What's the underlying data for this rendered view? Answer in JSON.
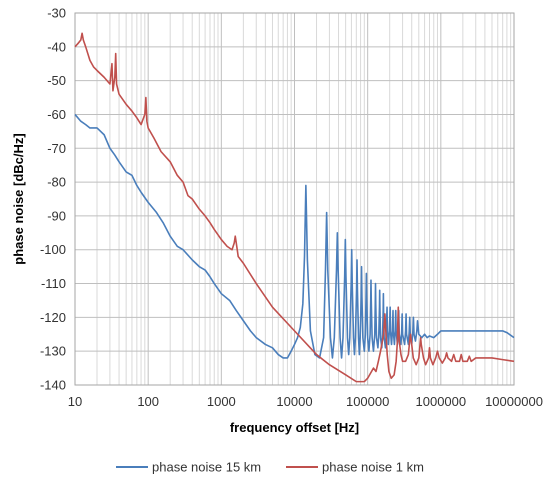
{
  "chart_data": {
    "type": "line",
    "title": "",
    "xlabel": "frequency offset [Hz]",
    "ylabel": "phase noise [dBc/Hz]",
    "x_scale": "log",
    "xlim": [
      10,
      10000000
    ],
    "ylim": [
      -140,
      -30
    ],
    "x_ticks": [
      10,
      100,
      1000,
      10000,
      100000,
      1000000,
      10000000
    ],
    "x_tick_labels": [
      "10",
      "100",
      "1000",
      "10000",
      "100000",
      "1000000",
      "10000000"
    ],
    "y_ticks": [
      -30,
      -40,
      -50,
      -60,
      -70,
      -80,
      -90,
      -100,
      -110,
      -120,
      -130,
      -140
    ],
    "y_tick_labels": [
      "-30",
      "-40",
      "-50",
      "-60",
      "-70",
      "-80",
      "-90",
      "-100",
      "-110",
      "-120",
      "-130",
      "-140"
    ],
    "grid": true,
    "legend_position": "bottom",
    "series": [
      {
        "name": "phase noise 15 km",
        "color": "#4a7ebb",
        "points": [
          [
            10,
            -60
          ],
          [
            12,
            -62
          ],
          [
            14,
            -63
          ],
          [
            16,
            -64
          ],
          [
            20,
            -64
          ],
          [
            25,
            -66
          ],
          [
            30,
            -70
          ],
          [
            35,
            -72
          ],
          [
            40,
            -74
          ],
          [
            50,
            -77
          ],
          [
            60,
            -78
          ],
          [
            70,
            -81
          ],
          [
            80,
            -83
          ],
          [
            100,
            -86
          ],
          [
            130,
            -89
          ],
          [
            160,
            -92
          ],
          [
            200,
            -96
          ],
          [
            250,
            -99
          ],
          [
            300,
            -100
          ],
          [
            400,
            -103
          ],
          [
            500,
            -105
          ],
          [
            600,
            -106
          ],
          [
            700,
            -108
          ],
          [
            800,
            -110
          ],
          [
            1000,
            -113
          ],
          [
            1300,
            -115
          ],
          [
            1600,
            -118
          ],
          [
            2000,
            -121
          ],
          [
            2500,
            -124
          ],
          [
            3000,
            -126
          ],
          [
            4000,
            -128
          ],
          [
            5000,
            -129
          ],
          [
            6000,
            -131
          ],
          [
            7000,
            -132
          ],
          [
            8000,
            -132
          ],
          [
            9000,
            -130
          ],
          [
            10000,
            -128
          ],
          [
            11000,
            -126
          ],
          [
            12000,
            -123
          ],
          [
            13000,
            -116
          ],
          [
            13700,
            -102
          ],
          [
            14300,
            -81
          ],
          [
            15000,
            -103
          ],
          [
            16500,
            -124
          ],
          [
            19000,
            -131
          ],
          [
            22000,
            -132
          ],
          [
            25000,
            -126
          ],
          [
            26500,
            -106
          ],
          [
            27500,
            -89
          ],
          [
            28500,
            -106
          ],
          [
            31000,
            -126
          ],
          [
            33000,
            -132
          ],
          [
            35000,
            -126
          ],
          [
            37500,
            -106
          ],
          [
            38500,
            -95
          ],
          [
            39500,
            -106
          ],
          [
            42000,
            -126
          ],
          [
            44000,
            -132
          ],
          [
            46000,
            -126
          ],
          [
            48500,
            -108
          ],
          [
            49500,
            -97
          ],
          [
            50500,
            -108
          ],
          [
            53000,
            -126
          ],
          [
            55000,
            -131
          ],
          [
            57000,
            -126
          ],
          [
            59500,
            -110
          ],
          [
            60500,
            -100
          ],
          [
            61500,
            -110
          ],
          [
            64000,
            -126
          ],
          [
            66000,
            -131
          ],
          [
            68000,
            -126
          ],
          [
            70500,
            -112
          ],
          [
            71500,
            -103
          ],
          [
            72500,
            -112
          ],
          [
            75000,
            -126
          ],
          [
            77000,
            -131
          ],
          [
            79000,
            -126
          ],
          [
            81500,
            -114
          ],
          [
            82500,
            -105
          ],
          [
            83500,
            -114
          ],
          [
            86000,
            -126
          ],
          [
            90000,
            -130
          ],
          [
            93000,
            -125
          ],
          [
            95000,
            -114
          ],
          [
            96000,
            -107
          ],
          [
            97000,
            -114
          ],
          [
            100000,
            -126
          ],
          [
            104000,
            -130
          ],
          [
            108000,
            -125
          ],
          [
            110000,
            -115
          ],
          [
            111000,
            -109
          ],
          [
            112000,
            -115
          ],
          [
            115000,
            -126
          ],
          [
            120000,
            -130
          ],
          [
            125000,
            -125
          ],
          [
            127000,
            -116
          ],
          [
            128000,
            -110
          ],
          [
            129000,
            -116
          ],
          [
            132000,
            -126
          ],
          [
            138000,
            -129
          ],
          [
            142000,
            -125
          ],
          [
            145000,
            -117
          ],
          [
            146000,
            -112
          ],
          [
            147000,
            -117
          ],
          [
            150000,
            -126
          ],
          [
            156000,
            -129
          ],
          [
            160000,
            -125
          ],
          [
            163000,
            -118
          ],
          [
            164000,
            -113
          ],
          [
            165000,
            -118
          ],
          [
            168000,
            -126
          ],
          [
            175000,
            -129
          ],
          [
            180000,
            -124
          ],
          [
            184000,
            -117
          ],
          [
            186000,
            -124
          ],
          [
            192000,
            -128
          ],
          [
            198000,
            -124
          ],
          [
            203000,
            -117
          ],
          [
            205000,
            -124
          ],
          [
            212000,
            -128
          ],
          [
            218000,
            -124
          ],
          [
            222000,
            -118
          ],
          [
            224000,
            -124
          ],
          [
            232000,
            -128
          ],
          [
            238000,
            -124
          ],
          [
            242000,
            -118
          ],
          [
            245000,
            -124
          ],
          [
            255000,
            -128
          ],
          [
            262000,
            -124
          ],
          [
            266000,
            -118
          ],
          [
            270000,
            -125
          ],
          [
            285000,
            -128
          ],
          [
            292000,
            -124
          ],
          [
            296000,
            -119
          ],
          [
            300000,
            -125
          ],
          [
            320000,
            -128
          ],
          [
            330000,
            -124
          ],
          [
            335000,
            -119
          ],
          [
            340000,
            -125
          ],
          [
            360000,
            -128
          ],
          [
            370000,
            -124
          ],
          [
            376000,
            -120
          ],
          [
            382000,
            -125
          ],
          [
            400000,
            -128
          ],
          [
            415000,
            -124
          ],
          [
            422000,
            -120
          ],
          [
            430000,
            -125
          ],
          [
            450000,
            -127
          ],
          [
            470000,
            -124
          ],
          [
            480000,
            -121
          ],
          [
            500000,
            -125
          ],
          [
            550000,
            -126
          ],
          [
            600000,
            -125
          ],
          [
            650000,
            -126
          ],
          [
            700000,
            -125.5
          ],
          [
            800000,
            -126
          ],
          [
            900000,
            -125
          ],
          [
            1000000,
            -124
          ],
          [
            2000000,
            -124
          ],
          [
            5000000,
            -124
          ],
          [
            7000000,
            -124
          ],
          [
            8000000,
            -124.5
          ],
          [
            10000000,
            -126
          ]
        ]
      },
      {
        "name": "phase noise 1 km",
        "color": "#c0504d",
        "points": [
          [
            10,
            -40
          ],
          [
            11,
            -39
          ],
          [
            12,
            -38
          ],
          [
            12.5,
            -36
          ],
          [
            13,
            -38
          ],
          [
            14,
            -40
          ],
          [
            16,
            -44
          ],
          [
            18,
            -46
          ],
          [
            20,
            -47
          ],
          [
            25,
            -49
          ],
          [
            30,
            -51
          ],
          [
            32,
            -45
          ],
          [
            33,
            -53
          ],
          [
            35,
            -49
          ],
          [
            36,
            -42
          ],
          [
            37,
            -51
          ],
          [
            40,
            -54
          ],
          [
            50,
            -57
          ],
          [
            60,
            -59
          ],
          [
            70,
            -61
          ],
          [
            80,
            -63
          ],
          [
            90,
            -60
          ],
          [
            93,
            -55
          ],
          [
            96,
            -62
          ],
          [
            100,
            -64
          ],
          [
            120,
            -67
          ],
          [
            150,
            -71
          ],
          [
            200,
            -74
          ],
          [
            250,
            -78
          ],
          [
            300,
            -80
          ],
          [
            350,
            -84
          ],
          [
            400,
            -85
          ],
          [
            500,
            -88
          ],
          [
            600,
            -90
          ],
          [
            700,
            -92
          ],
          [
            800,
            -94
          ],
          [
            1000,
            -97
          ],
          [
            1200,
            -99
          ],
          [
            1400,
            -100
          ],
          [
            1500,
            -98
          ],
          [
            1550,
            -96
          ],
          [
            1600,
            -98
          ],
          [
            1650,
            -100
          ],
          [
            1700,
            -102
          ],
          [
            2000,
            -104
          ],
          [
            3000,
            -110
          ],
          [
            5000,
            -117
          ],
          [
            10000,
            -124
          ],
          [
            20000,
            -131
          ],
          [
            30000,
            -134
          ],
          [
            50000,
            -137
          ],
          [
            70000,
            -139
          ],
          [
            90000,
            -139
          ],
          [
            100000,
            -138
          ],
          [
            120000,
            -135
          ],
          [
            130000,
            -136
          ],
          [
            140000,
            -133
          ],
          [
            150000,
            -130
          ],
          [
            165000,
            -125
          ],
          [
            172000,
            -119
          ],
          [
            178000,
            -125
          ],
          [
            185000,
            -131
          ],
          [
            195000,
            -136
          ],
          [
            210000,
            -138
          ],
          [
            230000,
            -137
          ],
          [
            245000,
            -133
          ],
          [
            255000,
            -127
          ],
          [
            258000,
            -122
          ],
          [
            262000,
            -117
          ],
          [
            266000,
            -122
          ],
          [
            270000,
            -127
          ],
          [
            285000,
            -131
          ],
          [
            300000,
            -133
          ],
          [
            330000,
            -133
          ],
          [
            360000,
            -131
          ],
          [
            375000,
            -127
          ],
          [
            385000,
            -125
          ],
          [
            395000,
            -127
          ],
          [
            420000,
            -132
          ],
          [
            460000,
            -134
          ],
          [
            500000,
            -132
          ],
          [
            520000,
            -128
          ],
          [
            530000,
            -126
          ],
          [
            540000,
            -128
          ],
          [
            580000,
            -132
          ],
          [
            620000,
            -134
          ],
          [
            680000,
            -132
          ],
          [
            700000,
            -129
          ],
          [
            720000,
            -132
          ],
          [
            780000,
            -134
          ],
          [
            850000,
            -132
          ],
          [
            900000,
            -130
          ],
          [
            950000,
            -132
          ],
          [
            1050000,
            -133.5
          ],
          [
            1150000,
            -132
          ],
          [
            1200000,
            -130.5
          ],
          [
            1250000,
            -132
          ],
          [
            1400000,
            -133
          ],
          [
            1500000,
            -131
          ],
          [
            1600000,
            -133
          ],
          [
            1800000,
            -133
          ],
          [
            1900000,
            -131
          ],
          [
            2000000,
            -133
          ],
          [
            2300000,
            -133
          ],
          [
            2450000,
            -131.5
          ],
          [
            2600000,
            -133
          ],
          [
            3000000,
            -132
          ],
          [
            4000000,
            -132
          ],
          [
            5000000,
            -132
          ],
          [
            7000000,
            -132.5
          ],
          [
            10000000,
            -133
          ]
        ]
      }
    ]
  }
}
